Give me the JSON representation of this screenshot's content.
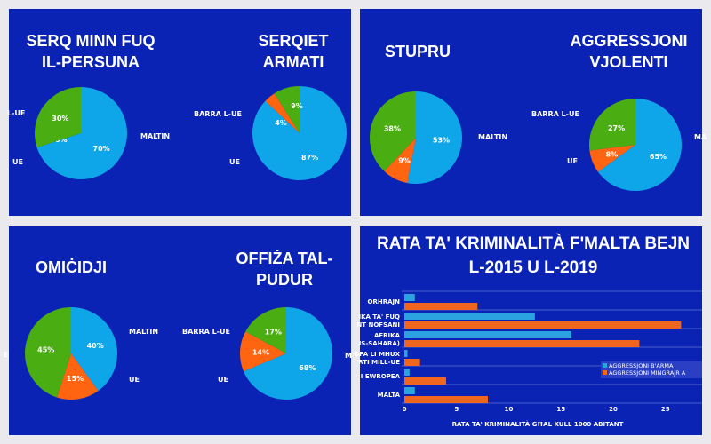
{
  "colors": {
    "maltin": "#0ea6e8",
    "ue": "#ff6410",
    "barra": "#4aad12",
    "panel": "#0b23b4",
    "aggressjoni_barma": "#2aa3e0",
    "aggressjoni_mingrajr": "#f0661e"
  },
  "chart_data": [
    {
      "type": "pie",
      "title": "SERQ MINN FUQ IL-PERSUNA",
      "slices": [
        {
          "label": "MALTIN",
          "value": 70,
          "text": "70%"
        },
        {
          "label": "UE",
          "value": 0,
          "text": "0%"
        },
        {
          "label": "L-UE",
          "value": 30,
          "text": "30%"
        }
      ]
    },
    {
      "type": "pie",
      "title": "SERQIET ARMATI",
      "slices": [
        {
          "label": "",
          "value": 87,
          "text": "87%"
        },
        {
          "label": "UE",
          "value": 4,
          "text": "4%"
        },
        {
          "label": "BARRA L-UE",
          "value": 9,
          "text": "9%"
        }
      ]
    },
    {
      "type": "pie",
      "title": "STUPRU",
      "slices": [
        {
          "label": "MALTIN",
          "value": 53,
          "text": "53%"
        },
        {
          "label": "",
          "value": 9,
          "text": "9%"
        },
        {
          "label": "",
          "value": 38,
          "text": "38%"
        }
      ]
    },
    {
      "type": "pie",
      "title": "AGGRESSJONI VJOLENTI",
      "slices": [
        {
          "label": "MA",
          "value": 65,
          "text": "65%"
        },
        {
          "label": "UE",
          "value": 8,
          "text": "8%"
        },
        {
          "label": "BARRA L-UE",
          "value": 27,
          "text": "27%"
        }
      ]
    },
    {
      "type": "pie",
      "title": "OMIĊIDJI",
      "slices": [
        {
          "label": "MALTIN",
          "value": 40,
          "text": "40%"
        },
        {
          "label": "UE",
          "value": 15,
          "text": "15%"
        },
        {
          "label": "E",
          "value": 45,
          "text": "45%"
        }
      ]
    },
    {
      "type": "pie",
      "title": "OFFIŻA TAL-PUDUR",
      "slices": [
        {
          "label": "M",
          "value": 68,
          "text": "68%"
        },
        {
          "label": "UE",
          "value": 14,
          "text": "14%"
        },
        {
          "label": "BARRA L-UE",
          "value": 17,
          "text": "17%"
        }
      ]
    },
    {
      "type": "bar",
      "orientation": "horizontal",
      "title": "RATA TA' KRIMINALITÀ F'MALTA BEJN L-2015 U L-2019",
      "xlabel": "RATA TA' KRIMINALITÀ GĦAL KULL 1000 ABITANT",
      "xlim": [
        0,
        28
      ],
      "xticks": [
        0,
        5,
        10,
        15,
        20,
        25
      ],
      "grid": true,
      "legend": "right",
      "categories": [
        [
          "ORHRAJN"
        ],
        [
          "IKA TA' FUQ",
          "NT NOFSANI"
        ],
        [
          "AFRIKA",
          "IS-SAHARA)"
        ],
        [
          "OPA LI MHUX",
          "RTI MILL-UE"
        ],
        [
          "I EWROPEA"
        ],
        [
          "MALTA"
        ]
      ],
      "series": [
        {
          "name": "AGGRESSJONI B'ARMA",
          "values": [
            1,
            12.5,
            16,
            0.3,
            0.5,
            1
          ]
        },
        {
          "name": "AGGRESSJONI MINGRAJR A",
          "values": [
            7,
            26.5,
            22.5,
            1.5,
            4,
            8
          ]
        }
      ]
    }
  ]
}
